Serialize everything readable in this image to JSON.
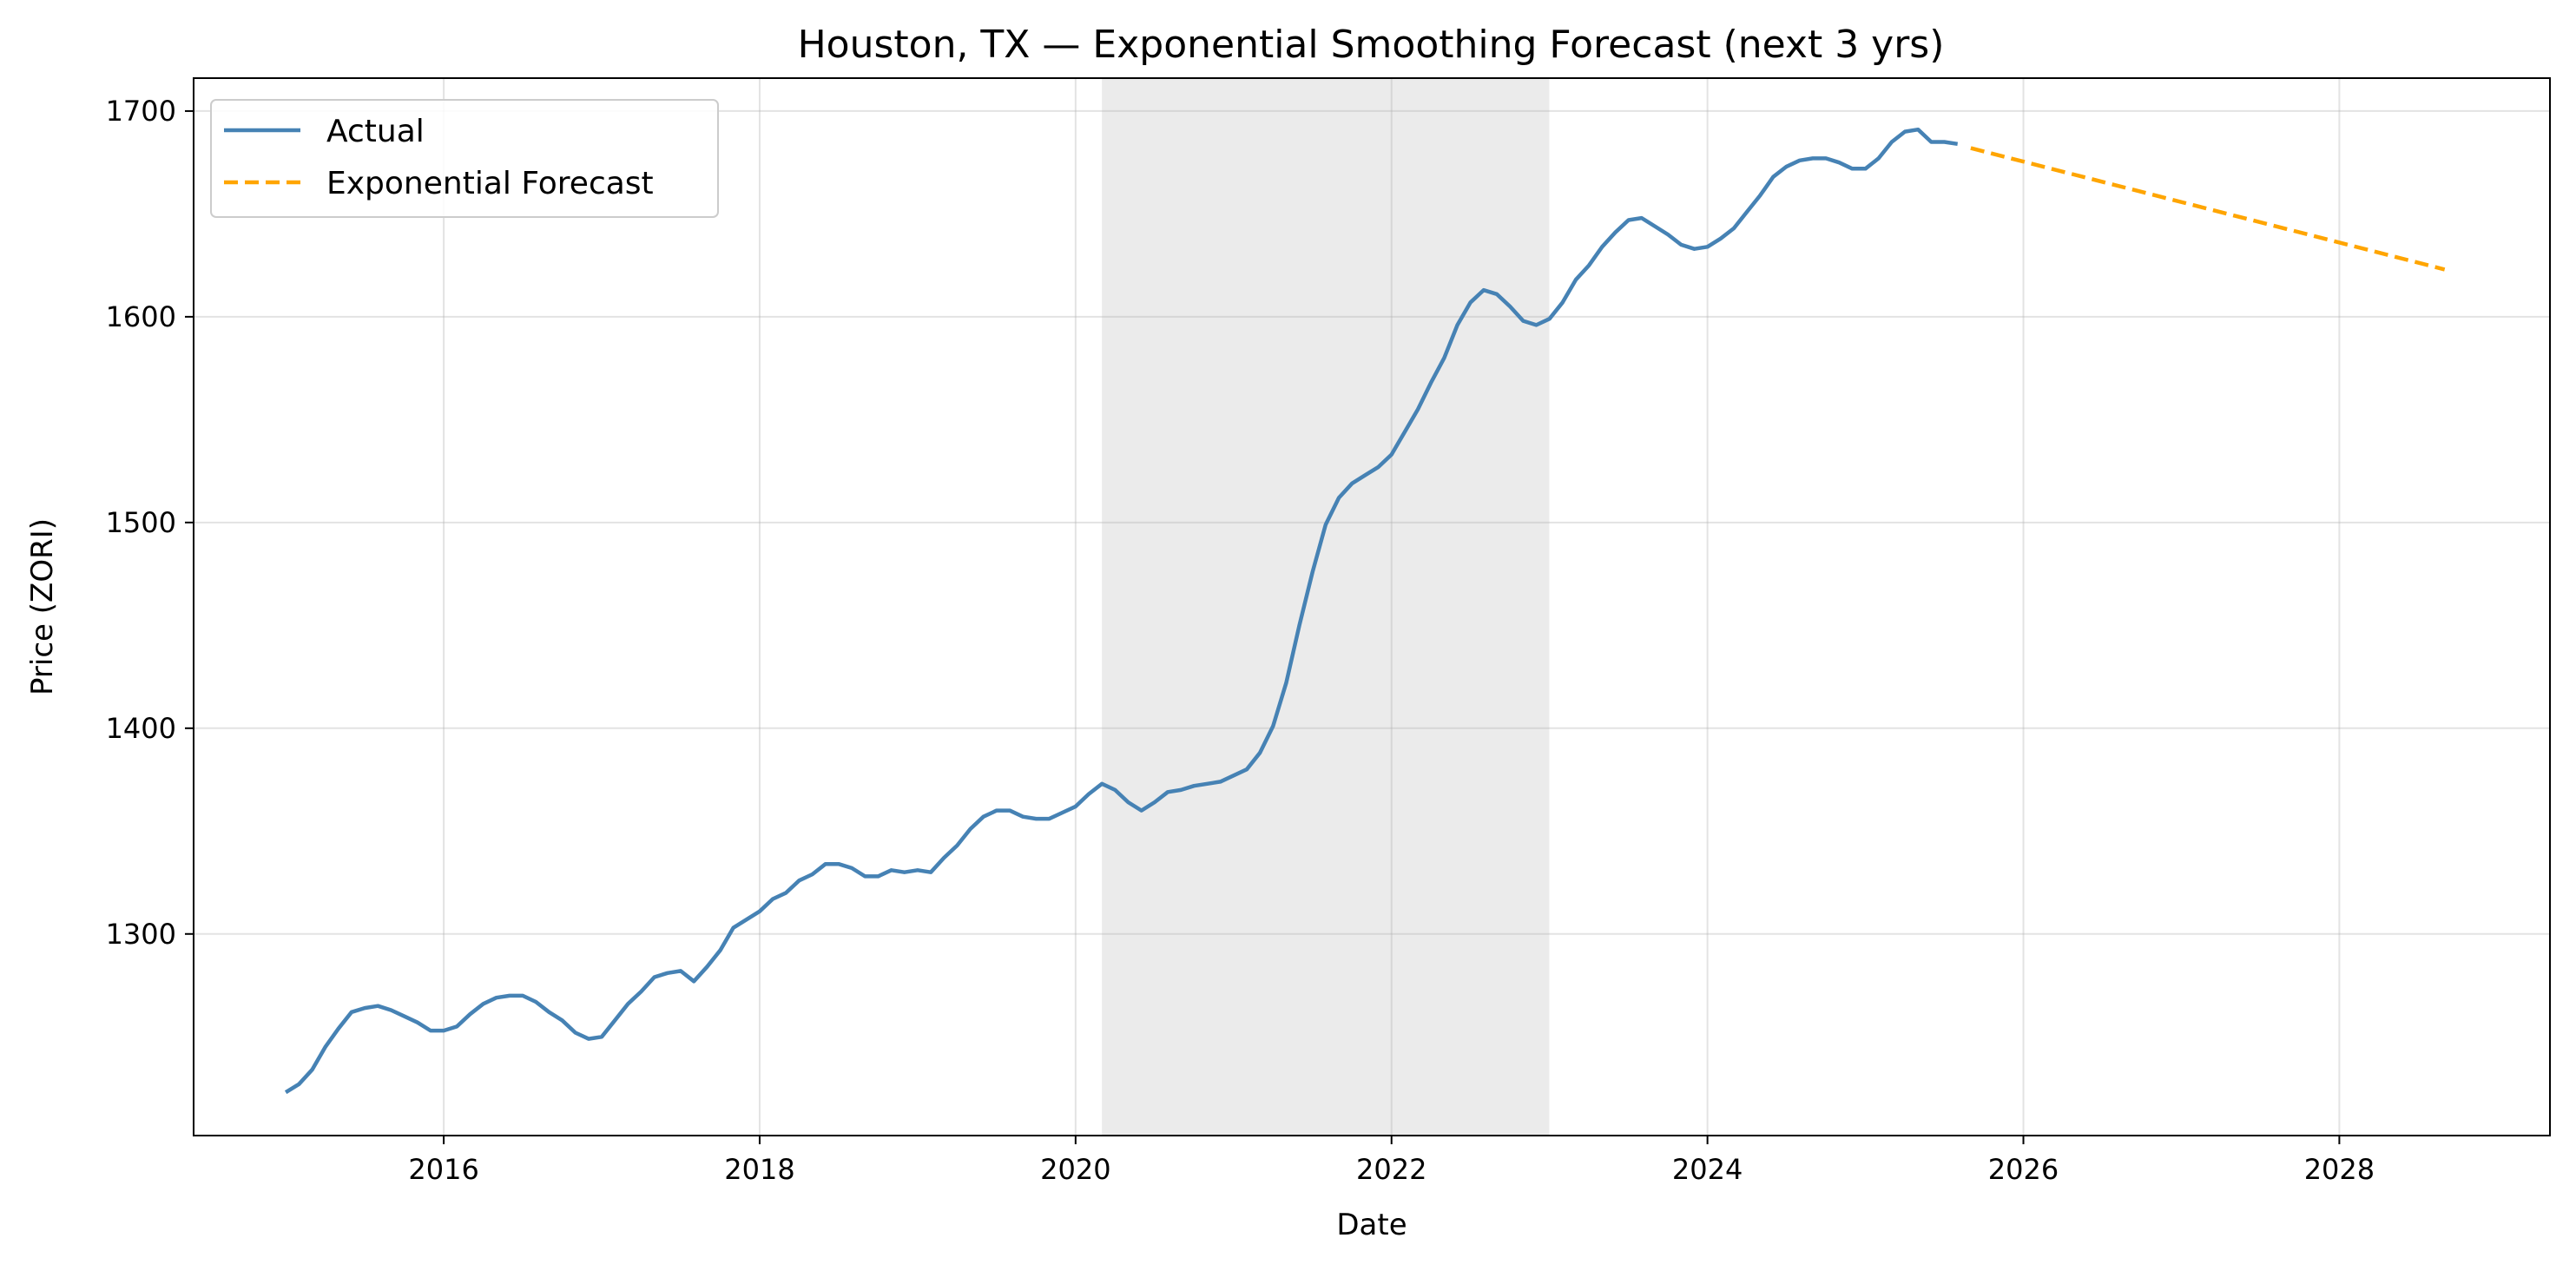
{
  "chart_data": {
    "type": "line",
    "title": "Houston, TX — Exponential Smoothing Forecast (next 3 yrs)",
    "xlabel": "Date",
    "ylabel": "Price (ZORI)",
    "xlim": [
      "2014-06-01",
      "2029-05-01"
    ],
    "ylim": [
      1202,
      1716
    ],
    "x_ticks": [
      "2016",
      "2018",
      "2020",
      "2022",
      "2024",
      "2026",
      "2028"
    ],
    "y_ticks": [
      1300,
      1400,
      1500,
      1600,
      1700
    ],
    "grid": true,
    "legend_position": "top-left",
    "shaded_region": {
      "start": "2020-03-01",
      "end": "2022-12-31"
    },
    "colors": {
      "actual": "#4682b4",
      "forecast": "#ffa500",
      "shade": "#d3d3d3"
    },
    "series": [
      {
        "name": "Actual",
        "style": "solid",
        "points": [
          [
            "2015-01",
            1223
          ],
          [
            "2015-02",
            1227
          ],
          [
            "2015-03",
            1234
          ],
          [
            "2015-04",
            1245
          ],
          [
            "2015-05",
            1254
          ],
          [
            "2015-06",
            1262
          ],
          [
            "2015-07",
            1264
          ],
          [
            "2015-08",
            1265
          ],
          [
            "2015-09",
            1263
          ],
          [
            "2015-10",
            1260
          ],
          [
            "2015-11",
            1257
          ],
          [
            "2015-12",
            1253
          ],
          [
            "2016-01",
            1253
          ],
          [
            "2016-02",
            1255
          ],
          [
            "2016-03",
            1261
          ],
          [
            "2016-04",
            1266
          ],
          [
            "2016-05",
            1269
          ],
          [
            "2016-06",
            1270
          ],
          [
            "2016-07",
            1270
          ],
          [
            "2016-08",
            1267
          ],
          [
            "2016-09",
            1262
          ],
          [
            "2016-10",
            1258
          ],
          [
            "2016-11",
            1252
          ],
          [
            "2016-12",
            1249
          ],
          [
            "2017-01",
            1250
          ],
          [
            "2017-02",
            1258
          ],
          [
            "2017-03",
            1266
          ],
          [
            "2017-04",
            1272
          ],
          [
            "2017-05",
            1279
          ],
          [
            "2017-06",
            1281
          ],
          [
            "2017-07",
            1282
          ],
          [
            "2017-08",
            1277
          ],
          [
            "2017-09",
            1284
          ],
          [
            "2017-10",
            1292
          ],
          [
            "2017-11",
            1303
          ],
          [
            "2017-12",
            1307
          ],
          [
            "2018-01",
            1311
          ],
          [
            "2018-02",
            1317
          ],
          [
            "2018-03",
            1320
          ],
          [
            "2018-04",
            1326
          ],
          [
            "2018-05",
            1329
          ],
          [
            "2018-06",
            1334
          ],
          [
            "2018-07",
            1334
          ],
          [
            "2018-08",
            1332
          ],
          [
            "2018-09",
            1328
          ],
          [
            "2018-10",
            1328
          ],
          [
            "2018-11",
            1331
          ],
          [
            "2018-12",
            1330
          ],
          [
            "2019-01",
            1331
          ],
          [
            "2019-02",
            1330
          ],
          [
            "2019-03",
            1337
          ],
          [
            "2019-04",
            1343
          ],
          [
            "2019-05",
            1351
          ],
          [
            "2019-06",
            1357
          ],
          [
            "2019-07",
            1360
          ],
          [
            "2019-08",
            1360
          ],
          [
            "2019-09",
            1357
          ],
          [
            "2019-10",
            1356
          ],
          [
            "2019-11",
            1356
          ],
          [
            "2019-12",
            1359
          ],
          [
            "2020-01",
            1362
          ],
          [
            "2020-02",
            1368
          ],
          [
            "2020-03",
            1373
          ],
          [
            "2020-04",
            1370
          ],
          [
            "2020-05",
            1364
          ],
          [
            "2020-06",
            1360
          ],
          [
            "2020-07",
            1364
          ],
          [
            "2020-08",
            1369
          ],
          [
            "2020-09",
            1370
          ],
          [
            "2020-10",
            1372
          ],
          [
            "2020-11",
            1373
          ],
          [
            "2020-12",
            1374
          ],
          [
            "2021-01",
            1377
          ],
          [
            "2021-02",
            1380
          ],
          [
            "2021-03",
            1388
          ],
          [
            "2021-04",
            1401
          ],
          [
            "2021-05",
            1422
          ],
          [
            "2021-06",
            1450
          ],
          [
            "2021-07",
            1476
          ],
          [
            "2021-08",
            1499
          ],
          [
            "2021-09",
            1512
          ],
          [
            "2021-10",
            1519
          ],
          [
            "2021-11",
            1523
          ],
          [
            "2021-12",
            1527
          ],
          [
            "2022-01",
            1533
          ],
          [
            "2022-02",
            1544
          ],
          [
            "2022-03",
            1555
          ],
          [
            "2022-04",
            1568
          ],
          [
            "2022-05",
            1580
          ],
          [
            "2022-06",
            1596
          ],
          [
            "2022-07",
            1607
          ],
          [
            "2022-08",
            1613
          ],
          [
            "2022-09",
            1611
          ],
          [
            "2022-10",
            1605
          ],
          [
            "2022-11",
            1598
          ],
          [
            "2022-12",
            1596
          ],
          [
            "2023-01",
            1599
          ],
          [
            "2023-02",
            1607
          ],
          [
            "2023-03",
            1618
          ],
          [
            "2023-04",
            1625
          ],
          [
            "2023-05",
            1634
          ],
          [
            "2023-06",
            1641
          ],
          [
            "2023-07",
            1647
          ],
          [
            "2023-08",
            1648
          ],
          [
            "2023-09",
            1644
          ],
          [
            "2023-10",
            1640
          ],
          [
            "2023-11",
            1635
          ],
          [
            "2023-12",
            1633
          ],
          [
            "2024-01",
            1634
          ],
          [
            "2024-02",
            1638
          ],
          [
            "2024-03",
            1643
          ],
          [
            "2024-04",
            1651
          ],
          [
            "2024-05",
            1659
          ],
          [
            "2024-06",
            1668
          ],
          [
            "2024-07",
            1673
          ],
          [
            "2024-08",
            1676
          ],
          [
            "2024-09",
            1677
          ],
          [
            "2024-10",
            1677
          ],
          [
            "2024-11",
            1675
          ],
          [
            "2024-12",
            1672
          ],
          [
            "2025-01",
            1672
          ],
          [
            "2025-02",
            1677
          ],
          [
            "2025-03",
            1685
          ],
          [
            "2025-04",
            1690
          ],
          [
            "2025-05",
            1691
          ],
          [
            "2025-06",
            1685
          ],
          [
            "2025-07",
            1685
          ],
          [
            "2025-08",
            1684
          ]
        ]
      },
      {
        "name": "Exponential Forecast",
        "style": "dashed",
        "points": [
          [
            "2025-09",
            1682
          ],
          [
            "2028-09",
            1623
          ]
        ]
      }
    ]
  }
}
